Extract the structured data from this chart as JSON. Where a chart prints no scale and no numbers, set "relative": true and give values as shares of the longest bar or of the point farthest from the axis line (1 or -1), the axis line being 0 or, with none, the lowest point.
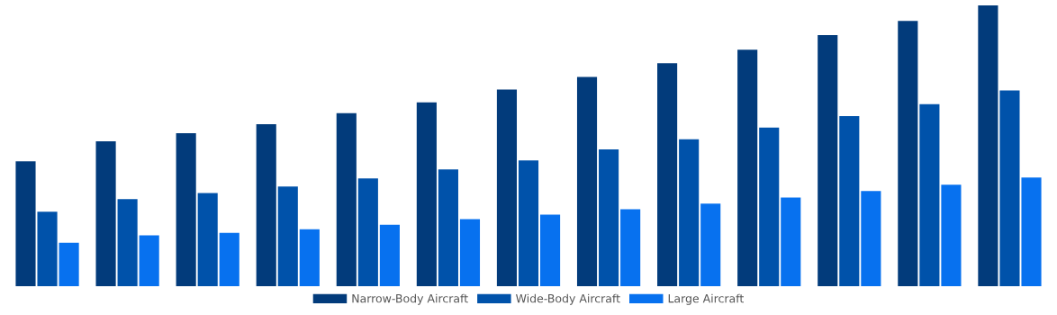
{
  "chart_data": {
    "type": "bar",
    "relative": true,
    "legend": "bottom",
    "grid": false,
    "categories": [
      null,
      null,
      null,
      null,
      null,
      null,
      null,
      null,
      null,
      null,
      null,
      null,
      null
    ],
    "series": [
      {
        "name": "Narrow-Body Aircraft",
        "color": "#023b7b",
        "values": [
          0.445,
          0.516,
          0.545,
          0.577,
          0.616,
          0.655,
          0.7,
          0.745,
          0.794,
          0.842,
          0.894,
          0.945,
          1
        ]
      },
      {
        "name": "Wide-Body Aircraft",
        "color": "#0052aa",
        "values": [
          0.265,
          0.31,
          0.332,
          0.355,
          0.384,
          0.416,
          0.448,
          0.487,
          0.523,
          0.565,
          0.606,
          0.648,
          0.697
        ]
      },
      {
        "name": "Large Aircraft",
        "color": "#0771ef",
        "values": [
          0.155,
          0.181,
          0.19,
          0.203,
          0.219,
          0.239,
          0.255,
          0.274,
          0.294,
          0.316,
          0.339,
          0.361,
          0.387
        ]
      }
    ]
  }
}
